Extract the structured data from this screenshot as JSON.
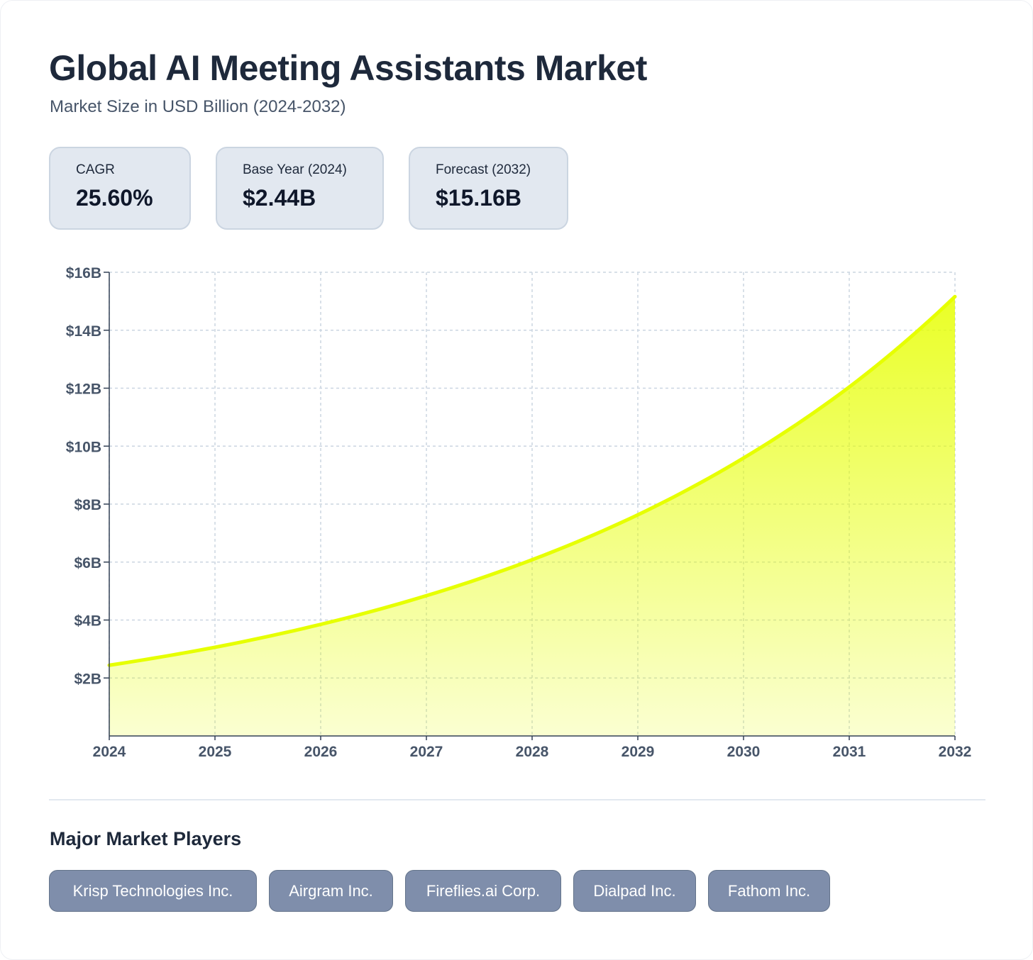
{
  "header": {
    "title": "Global AI Meeting Assistants Market",
    "subtitle": "Market Size in USD Billion (2024-2032)"
  },
  "stats": [
    {
      "label": "CAGR",
      "value": "25.60%"
    },
    {
      "label": "Base Year (2024)",
      "value": "$2.44B"
    },
    {
      "label": "Forecast (2032)",
      "value": "$15.16B"
    }
  ],
  "chart_data": {
    "type": "area",
    "x": [
      2024,
      2025,
      2026,
      2027,
      2028,
      2029,
      2030,
      2031,
      2032
    ],
    "x_tick_labels": [
      "2024",
      "2025",
      "2026",
      "2027",
      "2028",
      "2029",
      "2030",
      "2031",
      "2032"
    ],
    "series": [
      {
        "values": [
          2.44,
          3.06,
          3.85,
          4.84,
          6.08,
          7.63,
          9.59,
          12.04,
          15.16
        ],
        "color": "#e6ff00"
      }
    ],
    "y_ticks": [
      2,
      4,
      6,
      8,
      10,
      12,
      14,
      16
    ],
    "y_tick_labels": [
      "$2B",
      "$4B",
      "$6B",
      "$8B",
      "$10B",
      "$12B",
      "$14B",
      "$16B"
    ],
    "ylim": [
      0,
      16
    ],
    "xlim": [
      2024,
      2032
    ],
    "grid": true,
    "title": "",
    "xlabel": "",
    "ylabel": ""
  },
  "players": {
    "heading": "Major Market Players",
    "items": [
      "Krisp Technologies Inc.",
      "Airgram Inc.",
      "Fireflies.ai Corp.",
      "Dialpad Inc.",
      "Fathom Inc."
    ]
  },
  "colors": {
    "accent": "#e6ff00",
    "stat_bg": "#e2e8f0",
    "chip_bg": "#7f8eab",
    "text_dark": "#1e293b",
    "grid": "#cbd5e1"
  }
}
